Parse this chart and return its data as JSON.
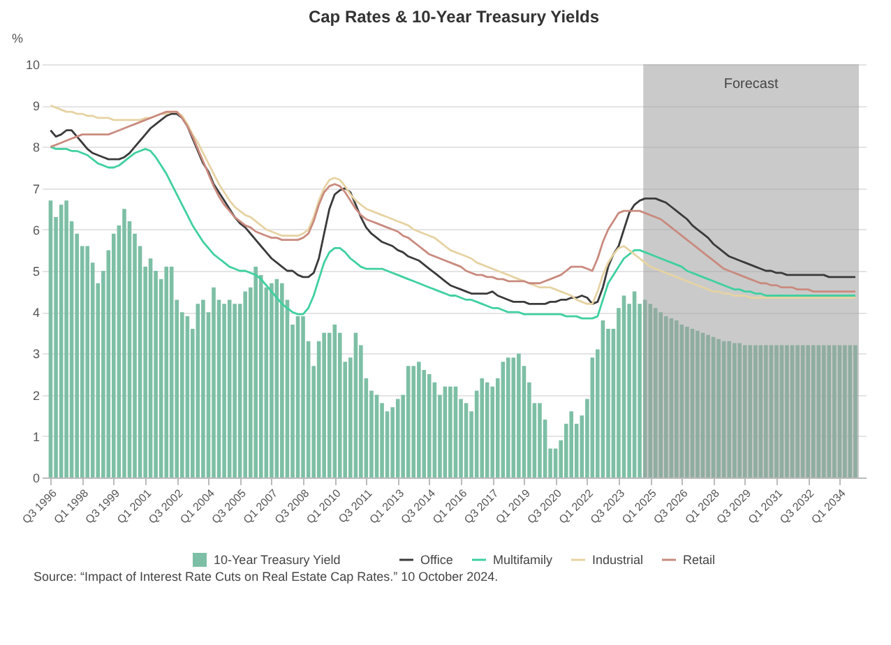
{
  "chart_data": {
    "type": "bar",
    "title": "Cap Rates & 10-Year Treasury Yields",
    "ylabel": "%",
    "x": [
      "1996-07",
      "1996-10",
      "1997-01",
      "1997-04",
      "1997-07",
      "1997-10",
      "1998-01",
      "1998-04",
      "1998-07",
      "1998-10",
      "1999-01",
      "1999-04",
      "1999-07",
      "1999-10",
      "2000-01",
      "2000-04",
      "2000-07",
      "2000-10",
      "2001-01",
      "2001-04",
      "2001-07",
      "2001-10",
      "2002-01",
      "2002-04",
      "2002-07",
      "2002-10",
      "2003-01",
      "2003-04",
      "2003-07",
      "2003-10",
      "2004-01",
      "2004-04",
      "2004-07",
      "2004-10",
      "2005-01",
      "2005-04",
      "2005-07",
      "2005-10",
      "2006-01",
      "2006-04",
      "2006-07",
      "2006-10",
      "2007-01",
      "2007-04",
      "2007-07",
      "2007-10",
      "2008-01",
      "2008-04",
      "2008-07",
      "2008-10",
      "2009-01",
      "2009-04",
      "2009-07",
      "2009-10",
      "2010-01",
      "2010-04",
      "2010-07",
      "2010-10",
      "2011-01",
      "2011-04",
      "2011-07",
      "2011-10",
      "2012-01",
      "2012-04",
      "2012-07",
      "2012-10",
      "2013-01",
      "2013-04",
      "2013-07",
      "2013-10",
      "2014-01",
      "2014-04",
      "2014-07",
      "2014-10",
      "2015-01",
      "2015-04",
      "2015-07",
      "2015-10",
      "2016-01",
      "2016-04",
      "2016-07",
      "2016-10",
      "2017-01",
      "2017-04",
      "2017-07",
      "2017-10",
      "2018-01",
      "2018-04",
      "2018-07",
      "2018-10",
      "2019-01",
      "2019-04",
      "2019-07",
      "2019-10",
      "2020-01",
      "2020-04",
      "2020-07",
      "2020-10",
      "2021-01",
      "2021-04",
      "2021-07",
      "2021-10",
      "2022-01",
      "2022-04",
      "2022-07",
      "2022-10",
      "2023-01",
      "2023-04",
      "2023-07",
      "2023-10",
      "2024-01",
      "2024-04",
      "2024-07",
      "2024-10",
      "2025-01",
      "2025-04",
      "2025-07",
      "2025-10",
      "2026-01",
      "2026-04",
      "2026-07",
      "2026-10",
      "2027-01",
      "2027-04",
      "2027-07",
      "2027-10",
      "2028-01",
      "2028-04",
      "2028-07",
      "2028-10",
      "2029-01",
      "2029-04",
      "2029-07",
      "2029-10",
      "2030-01",
      "2030-04",
      "2030-07",
      "2030-10",
      "2031-01",
      "2031-04",
      "2031-07",
      "2031-10",
      "2032-01",
      "2032-04",
      "2032-07",
      "2032-10",
      "2033-01",
      "2033-04",
      "2033-07",
      "2033-10",
      "2034-01",
      "2034-04",
      "2034-07",
      "2034-10"
    ],
    "series": [
      {
        "name": "10-Year Treasury Yield",
        "color": "#7dbfa5",
        "values": [
          6.7,
          6.3,
          6.6,
          6.7,
          6.2,
          5.9,
          5.6,
          5.6,
          5.2,
          4.7,
          5.0,
          5.5,
          5.9,
          6.1,
          6.5,
          6.2,
          5.9,
          5.6,
          5.1,
          5.3,
          5.0,
          4.8,
          5.1,
          5.1,
          4.3,
          4.0,
          3.9,
          3.6,
          4.2,
          4.3,
          4.0,
          4.6,
          4.3,
          4.2,
          4.3,
          4.2,
          4.2,
          4.5,
          4.6,
          5.1,
          4.9,
          4.6,
          4.7,
          4.8,
          4.7,
          4.3,
          3.7,
          3.9,
          3.9,
          3.3,
          2.7,
          3.3,
          3.5,
          3.5,
          3.7,
          3.5,
          2.8,
          2.9,
          3.5,
          3.2,
          2.4,
          2.1,
          2.0,
          1.8,
          1.6,
          1.7,
          1.9,
          2.0,
          2.7,
          2.7,
          2.8,
          2.6,
          2.5,
          2.3,
          2.0,
          2.2,
          2.2,
          2.2,
          1.9,
          1.8,
          1.6,
          2.1,
          2.4,
          2.3,
          2.2,
          2.4,
          2.8,
          2.9,
          2.9,
          3.0,
          2.7,
          2.3,
          1.8,
          1.8,
          1.4,
          0.7,
          0.7,
          0.9,
          1.3,
          1.6,
          1.3,
          1.5,
          1.9,
          2.9,
          3.1,
          3.8,
          3.6,
          3.6,
          4.1,
          4.4,
          4.2,
          4.5,
          4.2,
          4.3,
          4.2,
          4.1,
          4.0,
          3.9,
          3.85,
          3.8,
          3.7,
          3.65,
          3.6,
          3.55,
          3.5,
          3.45,
          3.4,
          3.35,
          3.3,
          3.3,
          3.25,
          3.25,
          3.2,
          3.2,
          3.2,
          3.2,
          3.2,
          3.2,
          3.2,
          3.2,
          3.2,
          3.2,
          3.2,
          3.2,
          3.2,
          3.2,
          3.2,
          3.2,
          3.2,
          3.2,
          3.2,
          3.2,
          3.2,
          3.2
        ]
      },
      {
        "name": "Office",
        "type": "line",
        "color": "#3a3a3a",
        "values": [
          8.4,
          8.25,
          8.3,
          8.4,
          8.4,
          8.25,
          8.1,
          7.95,
          7.85,
          7.8,
          7.75,
          7.7,
          7.7,
          7.7,
          7.75,
          7.85,
          8.0,
          8.15,
          8.3,
          8.45,
          8.55,
          8.65,
          8.75,
          8.8,
          8.8,
          8.7,
          8.5,
          8.2,
          7.9,
          7.6,
          7.4,
          7.1,
          6.9,
          6.7,
          6.5,
          6.3,
          6.15,
          6.05,
          5.9,
          5.75,
          5.6,
          5.45,
          5.3,
          5.2,
          5.1,
          5.0,
          5.0,
          4.9,
          4.85,
          4.85,
          4.95,
          5.3,
          5.9,
          6.5,
          6.85,
          6.95,
          7.0,
          6.9,
          6.6,
          6.3,
          6.05,
          5.9,
          5.8,
          5.7,
          5.65,
          5.6,
          5.5,
          5.45,
          5.35,
          5.3,
          5.25,
          5.15,
          5.05,
          4.95,
          4.85,
          4.75,
          4.65,
          4.6,
          4.55,
          4.5,
          4.45,
          4.45,
          4.45,
          4.45,
          4.5,
          4.4,
          4.35,
          4.3,
          4.25,
          4.25,
          4.25,
          4.2,
          4.2,
          4.2,
          4.2,
          4.25,
          4.25,
          4.3,
          4.3,
          4.35,
          4.35,
          4.4,
          4.35,
          4.2,
          4.25,
          4.6,
          5.1,
          5.4,
          5.6,
          6.0,
          6.4,
          6.6,
          6.7,
          6.75,
          6.75,
          6.75,
          6.7,
          6.65,
          6.55,
          6.45,
          6.35,
          6.25,
          6.1,
          6.0,
          5.9,
          5.8,
          5.65,
          5.55,
          5.45,
          5.35,
          5.3,
          5.25,
          5.2,
          5.15,
          5.1,
          5.05,
          5.0,
          5.0,
          4.95,
          4.95,
          4.9,
          4.9,
          4.9,
          4.9,
          4.9,
          4.9,
          4.9,
          4.9,
          4.85,
          4.85,
          4.85,
          4.85,
          4.85,
          4.85
        ]
      },
      {
        "name": "Multifamily",
        "type": "line",
        "color": "#3fd0a0",
        "values": [
          8.0,
          7.95,
          7.95,
          7.95,
          7.9,
          7.9,
          7.85,
          7.8,
          7.7,
          7.6,
          7.55,
          7.5,
          7.5,
          7.55,
          7.65,
          7.75,
          7.85,
          7.9,
          7.95,
          7.9,
          7.75,
          7.55,
          7.35,
          7.1,
          6.85,
          6.6,
          6.35,
          6.1,
          5.9,
          5.7,
          5.55,
          5.4,
          5.3,
          5.2,
          5.1,
          5.05,
          5.0,
          5.0,
          4.95,
          4.9,
          4.8,
          4.65,
          4.5,
          4.35,
          4.2,
          4.1,
          4.0,
          3.95,
          3.95,
          4.1,
          4.4,
          4.8,
          5.2,
          5.45,
          5.55,
          5.55,
          5.45,
          5.3,
          5.2,
          5.1,
          5.05,
          5.05,
          5.05,
          5.05,
          5.0,
          4.95,
          4.9,
          4.85,
          4.8,
          4.75,
          4.7,
          4.65,
          4.6,
          4.55,
          4.5,
          4.45,
          4.4,
          4.4,
          4.35,
          4.3,
          4.3,
          4.25,
          4.2,
          4.15,
          4.1,
          4.1,
          4.05,
          4.0,
          4.0,
          4.0,
          3.95,
          3.95,
          3.95,
          3.95,
          3.95,
          3.95,
          3.95,
          3.95,
          3.9,
          3.9,
          3.9,
          3.85,
          3.85,
          3.85,
          3.9,
          4.3,
          4.7,
          4.9,
          5.1,
          5.3,
          5.4,
          5.5,
          5.5,
          5.45,
          5.4,
          5.35,
          5.3,
          5.25,
          5.2,
          5.15,
          5.1,
          5.0,
          4.95,
          4.9,
          4.85,
          4.8,
          4.75,
          4.7,
          4.65,
          4.6,
          4.55,
          4.55,
          4.5,
          4.5,
          4.45,
          4.45,
          4.4,
          4.4,
          4.4,
          4.4,
          4.4,
          4.4,
          4.4,
          4.4,
          4.4,
          4.4,
          4.4,
          4.4,
          4.4,
          4.4,
          4.4,
          4.4,
          4.4,
          4.4
        ]
      },
      {
        "name": "Industrial",
        "type": "line",
        "color": "#e6d3a3",
        "values": [
          9.0,
          8.95,
          8.9,
          8.85,
          8.85,
          8.8,
          8.8,
          8.75,
          8.75,
          8.7,
          8.7,
          8.7,
          8.65,
          8.65,
          8.65,
          8.65,
          8.65,
          8.65,
          8.7,
          8.7,
          8.75,
          8.8,
          8.8,
          8.85,
          8.85,
          8.75,
          8.55,
          8.3,
          8.1,
          7.85,
          7.6,
          7.35,
          7.1,
          6.9,
          6.7,
          6.55,
          6.45,
          6.35,
          6.3,
          6.2,
          6.1,
          6.0,
          5.95,
          5.9,
          5.85,
          5.85,
          5.85,
          5.85,
          5.9,
          6.0,
          6.3,
          6.7,
          7.0,
          7.2,
          7.25,
          7.2,
          7.05,
          6.85,
          6.7,
          6.6,
          6.5,
          6.45,
          6.4,
          6.35,
          6.3,
          6.25,
          6.2,
          6.15,
          6.1,
          6.0,
          5.95,
          5.9,
          5.85,
          5.8,
          5.7,
          5.6,
          5.5,
          5.45,
          5.4,
          5.35,
          5.3,
          5.2,
          5.15,
          5.1,
          5.05,
          5.0,
          4.95,
          4.9,
          4.85,
          4.8,
          4.75,
          4.7,
          4.65,
          4.6,
          4.6,
          4.6,
          4.55,
          4.5,
          4.45,
          4.4,
          4.3,
          4.25,
          4.2,
          4.2,
          4.5,
          4.9,
          5.2,
          5.4,
          5.55,
          5.6,
          5.5,
          5.4,
          5.3,
          5.2,
          5.1,
          5.05,
          5.0,
          4.95,
          4.9,
          4.85,
          4.8,
          4.75,
          4.7,
          4.65,
          4.6,
          4.55,
          4.5,
          4.5,
          4.45,
          4.45,
          4.4,
          4.4,
          4.4,
          4.35,
          4.35,
          4.35,
          4.35,
          4.35,
          4.35,
          4.35,
          4.35,
          4.35,
          4.35,
          4.35,
          4.35,
          4.35,
          4.35,
          4.35,
          4.35,
          4.35,
          4.35,
          4.35,
          4.35,
          4.35
        ]
      },
      {
        "name": "Retail",
        "type": "line",
        "color": "#c98a7e",
        "values": [
          8.0,
          8.05,
          8.1,
          8.15,
          8.2,
          8.25,
          8.3,
          8.3,
          8.3,
          8.3,
          8.3,
          8.3,
          8.35,
          8.4,
          8.45,
          8.5,
          8.55,
          8.6,
          8.65,
          8.7,
          8.75,
          8.8,
          8.85,
          8.85,
          8.85,
          8.7,
          8.5,
          8.25,
          7.95,
          7.65,
          7.35,
          7.05,
          6.8,
          6.6,
          6.45,
          6.3,
          6.2,
          6.1,
          6.05,
          5.95,
          5.9,
          5.85,
          5.8,
          5.8,
          5.75,
          5.75,
          5.75,
          5.75,
          5.8,
          5.9,
          6.2,
          6.6,
          6.9,
          7.05,
          7.1,
          7.05,
          6.9,
          6.7,
          6.5,
          6.35,
          6.25,
          6.2,
          6.15,
          6.1,
          6.05,
          6.0,
          5.95,
          5.85,
          5.8,
          5.7,
          5.6,
          5.5,
          5.4,
          5.35,
          5.3,
          5.25,
          5.2,
          5.15,
          5.1,
          5.0,
          4.95,
          4.9,
          4.9,
          4.85,
          4.85,
          4.8,
          4.8,
          4.75,
          4.75,
          4.75,
          4.75,
          4.7,
          4.7,
          4.7,
          4.75,
          4.8,
          4.85,
          4.9,
          5.0,
          5.1,
          5.1,
          5.1,
          5.05,
          5.0,
          5.3,
          5.7,
          6.0,
          6.2,
          6.4,
          6.45,
          6.45,
          6.45,
          6.45,
          6.4,
          6.35,
          6.3,
          6.25,
          6.15,
          6.05,
          5.95,
          5.85,
          5.75,
          5.65,
          5.55,
          5.45,
          5.35,
          5.25,
          5.15,
          5.05,
          5.0,
          4.95,
          4.9,
          4.85,
          4.8,
          4.75,
          4.7,
          4.7,
          4.65,
          4.65,
          4.6,
          4.6,
          4.6,
          4.55,
          4.55,
          4.55,
          4.5,
          4.5,
          4.5,
          4.5,
          4.5,
          4.5,
          4.5,
          4.5,
          4.5
        ]
      }
    ],
    "xlim": [
      "1996-06",
      "2034-12"
    ],
    "xticks": [
      {
        "value": "1996-07",
        "label": "Q3 1996"
      },
      {
        "value": "1998-01",
        "label": "Q1 1998"
      },
      {
        "value": "1999-07",
        "label": "Q3 1999"
      },
      {
        "value": "2001-01",
        "label": "Q1 2001"
      },
      {
        "value": "2002-07",
        "label": "Q3 2002"
      },
      {
        "value": "2004-01",
        "label": "Q1 2004"
      },
      {
        "value": "2005-07",
        "label": "Q3 2005"
      },
      {
        "value": "2007-01",
        "label": "Q1 2007"
      },
      {
        "value": "2008-07",
        "label": "Q3 2008"
      },
      {
        "value": "2010-01",
        "label": "Q1 2010"
      },
      {
        "value": "2011-07",
        "label": "Q3 2011"
      },
      {
        "value": "2013-01",
        "label": "Q1 2013"
      },
      {
        "value": "2014-07",
        "label": "Q3 2014"
      },
      {
        "value": "2016-01",
        "label": "Q1 2016"
      },
      {
        "value": "2017-07",
        "label": "Q3 2017"
      },
      {
        "value": "2019-01",
        "label": "Q1 2019"
      },
      {
        "value": "2020-07",
        "label": "Q3 2020"
      },
      {
        "value": "2022-01",
        "label": "Q1 2022"
      },
      {
        "value": "2023-07",
        "label": "Q3 2023"
      },
      {
        "value": "2025-01",
        "label": "Q1 2025"
      },
      {
        "value": "2026-07",
        "label": "Q3 2026"
      },
      {
        "value": "2028-01",
        "label": "Q1 2028"
      },
      {
        "value": "2029-07",
        "label": "Q3 2029"
      },
      {
        "value": "2031-01",
        "label": "Q1 2031"
      },
      {
        "value": "2032-07",
        "label": "Q3 2032"
      },
      {
        "value": "2034-01",
        "label": "Q1 2034"
      }
    ],
    "ylim": [
      0,
      10
    ],
    "yticks": [
      0,
      1,
      2,
      3,
      4,
      5,
      6,
      7,
      8,
      9,
      10
    ],
    "grid": "y",
    "legend": "bottom",
    "bands": [
      {
        "axis": "x",
        "from": "2024-09",
        "to": "2034-12",
        "label": "Forecast",
        "color": "#9e9e9e"
      }
    ],
    "annotations": [
      "Source: “Impact of Interest Rate Cuts on Real Estate Cap Rates.” 10 October 2024."
    ]
  }
}
